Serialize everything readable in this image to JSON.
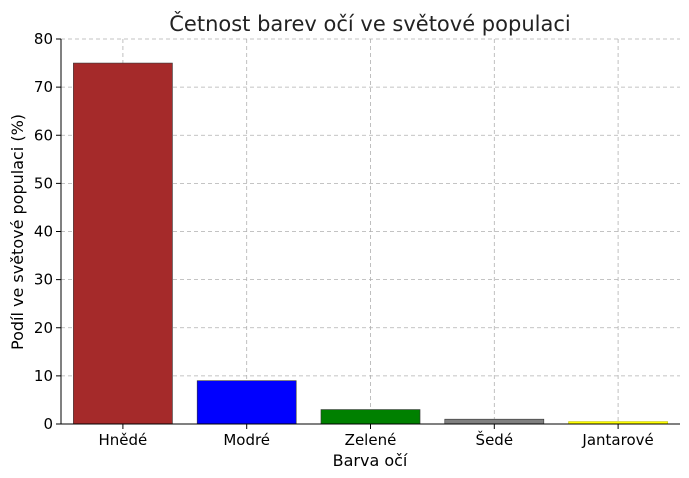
{
  "chart_data": {
    "type": "bar",
    "title": "Četnost barev očí ve světové populaci",
    "xlabel": "Barva očí",
    "ylabel": "Podíl ve světové populaci (%)",
    "categories": [
      "Hnědé",
      "Modré",
      "Zelené",
      "Šedé",
      "Jantarové"
    ],
    "values": [
      75,
      9,
      3,
      1,
      0.5
    ],
    "colors": [
      "#a52a2a",
      "#0000ff",
      "#008000",
      "#808080",
      "#ffff00"
    ],
    "ylim": [
      0,
      80
    ],
    "yticks": [
      0,
      10,
      20,
      30,
      40,
      50,
      60,
      70,
      80
    ],
    "grid": true
  }
}
